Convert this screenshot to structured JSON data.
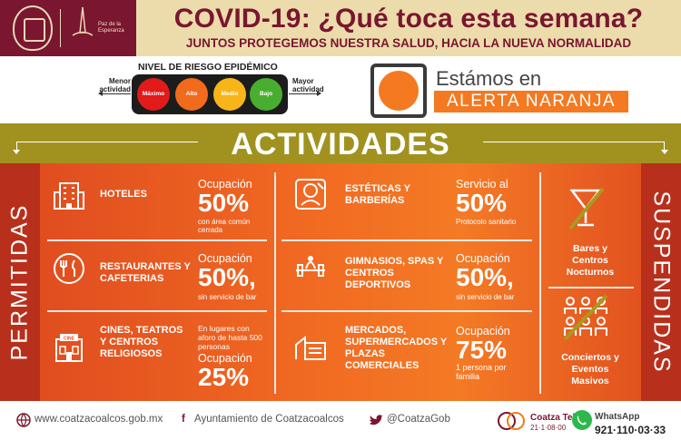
{
  "header": {
    "title": "COVID-19: ¿Qué toca esta semana?",
    "subtitle": "JUNTOS PROTEGEMOS NUESTRA SALUD, HACIA LA NUEVA NORMALIDAD",
    "slogan": "Paz de la Esperanza"
  },
  "risk": {
    "title": "NIVEL DE RIESGO EPIDÉMICO",
    "min_label": "Menor actividad",
    "max_label": "Mayor actividad",
    "levels": [
      "Máximo",
      "Alto",
      "Medio",
      "Bajo"
    ],
    "colors": [
      "#e11a1a",
      "#f26a1b",
      "#f8b51a",
      "#49ae2f"
    ]
  },
  "alert": {
    "line1": "Estámos en",
    "line2": "ALERTA NARANJA",
    "color": "#f47920"
  },
  "activities_title": "ACTIVIDADES",
  "permitted_label": "PERMITIDAS",
  "suspended_label": "SUSPENDIDAS",
  "permitted": [
    {
      "name": "HOTELES",
      "label": "Ocupación",
      "value": "50%",
      "note": "con área común cerrada",
      "icon": "hotel-icon"
    },
    {
      "name": "ESTÉTICAS Y BARBERÍAS",
      "label": "Servicio al",
      "value": "50%",
      "note": "Protocolo sanitario",
      "icon": "salon-icon"
    },
    {
      "name": "RESTAURANTES Y CAFETERIAS",
      "label": "Ocupación",
      "value": "50%,",
      "note": "sin servicio de bar",
      "icon": "restaurant-icon"
    },
    {
      "name": "GIMNASIOS, SPAS Y CENTROS DEPORTIVOS",
      "label": "Ocupación",
      "value": "50%,",
      "note": "sin servicio de bar",
      "icon": "gym-icon"
    },
    {
      "name": "CINES, TEATROS Y CENTROS RELIGIOSOS",
      "pre_note": "En lugares con aforo de hasta 500 personas",
      "label": "Ocupación",
      "value": "25%",
      "icon": "cinema-icon"
    },
    {
      "name": "MERCADOS, SUPERMERCADOS Y PLAZAS COMERCIALES",
      "label": "Ocupación",
      "value": "75%",
      "note": "1 persona por familia",
      "icon": "market-icon"
    }
  ],
  "suspended": [
    {
      "name": "Bares y Centros Nocturnos",
      "icon": "cocktail-icon"
    },
    {
      "name": "Conciertos y Eventos Masivos",
      "icon": "concert-icon"
    }
  ],
  "footer": {
    "web": "www.coatzacoalcos.gob.mx",
    "facebook": "Ayuntamiento de Coatzacoalcos",
    "twitter": "@CoatzaGob",
    "tel_name": "Coatza Tel",
    "tel_number": "21·1·08·00",
    "whatsapp_label": "WhatsApp",
    "whatsapp_number": "921·110·03·33"
  }
}
